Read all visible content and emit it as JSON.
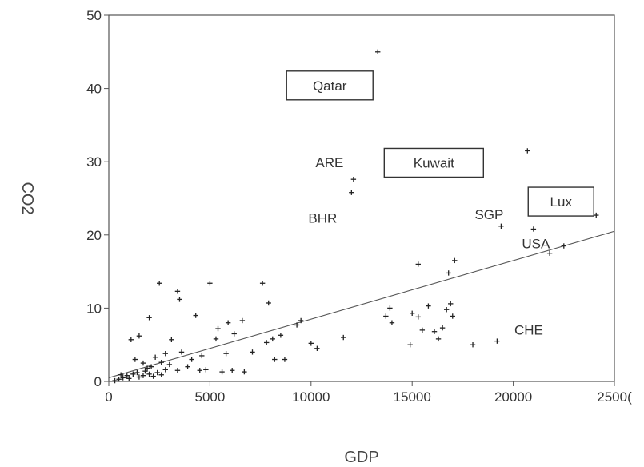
{
  "chart_data": {
    "type": "scatter",
    "xlabel": "GDP",
    "ylabel": "CO2",
    "xlim": [
      0,
      25000
    ],
    "ylim": [
      0,
      50
    ],
    "xticks": [
      "0",
      "5000",
      "10000",
      "15000",
      "20000",
      "2500("
    ],
    "yticks": [
      "0",
      "10",
      "20",
      "30",
      "40",
      "50"
    ],
    "grid": false,
    "marker": "+",
    "annotations": [
      {
        "text": "Qatar",
        "boxed": true,
        "x": 13300,
        "y": 45.0
      },
      {
        "text": "Kuwait",
        "boxed": true,
        "x": 20700,
        "y": 31.5
      },
      {
        "text": "ARE",
        "boxed": false,
        "x": 12100,
        "y": 27.6
      },
      {
        "text": "BHR",
        "boxed": false,
        "x": 12000,
        "y": 25.8
      },
      {
        "text": "SGP",
        "boxed": false,
        "x": 19400,
        "y": 21.2
      },
      {
        "text": "Lux",
        "boxed": true,
        "x": 24100,
        "y": 22.7
      },
      {
        "text": "USA",
        "boxed": false,
        "x": 21000,
        "y": 20.8
      },
      {
        "text": "CHE",
        "boxed": false,
        "x": 19300,
        "y": 5.5
      }
    ],
    "fit_line": {
      "x": [
        0,
        25000
      ],
      "y": [
        0.5,
        20.5
      ]
    },
    "points": [
      [
        13300,
        45.0
      ],
      [
        20700,
        31.5
      ],
      [
        12100,
        27.6
      ],
      [
        12000,
        25.8
      ],
      [
        24100,
        22.7
      ],
      [
        19400,
        21.2
      ],
      [
        21000,
        20.8
      ],
      [
        21800,
        17.5
      ],
      [
        22500,
        18.5
      ],
      [
        17100,
        16.5
      ],
      [
        15300,
        16.0
      ],
      [
        16800,
        14.8
      ],
      [
        2500,
        13.4
      ],
      [
        5000,
        13.4
      ],
      [
        7600,
        13.4
      ],
      [
        3400,
        12.3
      ],
      [
        3500,
        11.2
      ],
      [
        7900,
        10.7
      ],
      [
        13900,
        10.0
      ],
      [
        15800,
        10.3
      ],
      [
        16900,
        10.6
      ],
      [
        16700,
        9.8
      ],
      [
        15000,
        9.3
      ],
      [
        15300,
        8.8
      ],
      [
        13700,
        8.9
      ],
      [
        14000,
        8.0
      ],
      [
        17000,
        8.9
      ],
      [
        15500,
        7.0
      ],
      [
        16500,
        7.3
      ],
      [
        16100,
        6.8
      ],
      [
        16300,
        5.8
      ],
      [
        14900,
        5.0
      ],
      [
        18000,
        5.0
      ],
      [
        19200,
        5.5
      ],
      [
        9500,
        8.3
      ],
      [
        9300,
        7.7
      ],
      [
        8500,
        6.3
      ],
      [
        8100,
        5.8
      ],
      [
        7800,
        5.3
      ],
      [
        8700,
        3.0
      ],
      [
        8200,
        3.0
      ],
      [
        10000,
        5.2
      ],
      [
        10300,
        4.5
      ],
      [
        11600,
        6.0
      ],
      [
        6600,
        8.3
      ],
      [
        5900,
        8.0
      ],
      [
        4300,
        9.0
      ],
      [
        5400,
        7.2
      ],
      [
        6200,
        6.5
      ],
      [
        5300,
        5.8
      ],
      [
        5800,
        3.8
      ],
      [
        4600,
        3.5
      ],
      [
        4500,
        1.5
      ],
      [
        5600,
        1.3
      ],
      [
        6100,
        1.5
      ],
      [
        6700,
        1.3
      ],
      [
        7100,
        4.0
      ],
      [
        2000,
        8.7
      ],
      [
        1500,
        6.2
      ],
      [
        1100,
        5.7
      ],
      [
        3100,
        5.7
      ],
      [
        3600,
        4.0
      ],
      [
        2800,
        3.8
      ],
      [
        2300,
        3.3
      ],
      [
        1300,
        3.0
      ],
      [
        1700,
        2.5
      ],
      [
        2100,
        2.0
      ],
      [
        2600,
        2.6
      ],
      [
        3000,
        2.3
      ],
      [
        3400,
        1.5
      ],
      [
        3900,
        2.0
      ],
      [
        4100,
        3.0
      ],
      [
        4800,
        1.6
      ],
      [
        500,
        0.3
      ],
      [
        700,
        0.5
      ],
      [
        900,
        0.8
      ],
      [
        1000,
        0.4
      ],
      [
        1200,
        1.0
      ],
      [
        1400,
        1.2
      ],
      [
        1500,
        0.6
      ],
      [
        1700,
        0.8
      ],
      [
        1800,
        1.4
      ],
      [
        2000,
        1.0
      ],
      [
        2200,
        0.7
      ],
      [
        2400,
        1.2
      ],
      [
        2600,
        0.9
      ],
      [
        2800,
        1.6
      ],
      [
        300,
        0.1
      ],
      [
        600,
        0.9
      ],
      [
        1900,
        1.8
      ]
    ]
  }
}
